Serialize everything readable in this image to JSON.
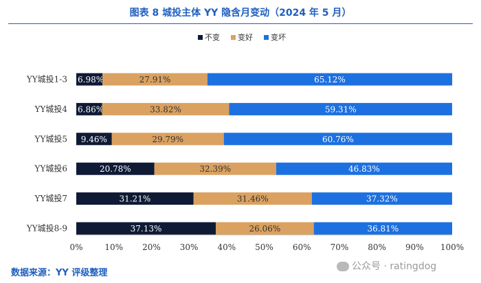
{
  "chart_data": {
    "type": "bar",
    "orientation": "horizontal",
    "stacked": true,
    "title": "图表 8 城投主体 YY 隐含月变动（2024 年 5 月）",
    "categories": [
      "YY城投1-3",
      "YY城投4",
      "YY城投5",
      "YY城投6",
      "YY城投7",
      "YY城投8-9"
    ],
    "series": [
      {
        "name": "不变",
        "color": "#0f1a35",
        "values": [
          6.98,
          6.86,
          9.46,
          20.78,
          31.21,
          37.13
        ]
      },
      {
        "name": "变好",
        "color": "#daa160",
        "values": [
          27.91,
          33.82,
          29.79,
          32.39,
          31.46,
          26.06
        ]
      },
      {
        "name": "变坏",
        "color": "#1d70e0",
        "values": [
          65.12,
          59.31,
          60.76,
          46.83,
          37.32,
          36.81
        ]
      }
    ],
    "xlim": [
      0,
      100
    ],
    "xticks": [
      "0%",
      "10%",
      "20%",
      "30%",
      "40%",
      "50%",
      "60%",
      "70%",
      "80%",
      "90%",
      "100%"
    ],
    "legend_position": "top-center",
    "xlabel": "",
    "ylabel": ""
  },
  "footer": {
    "source": "数据来源：YY 评级整理",
    "watermark": "公众号 · ratingdog"
  }
}
